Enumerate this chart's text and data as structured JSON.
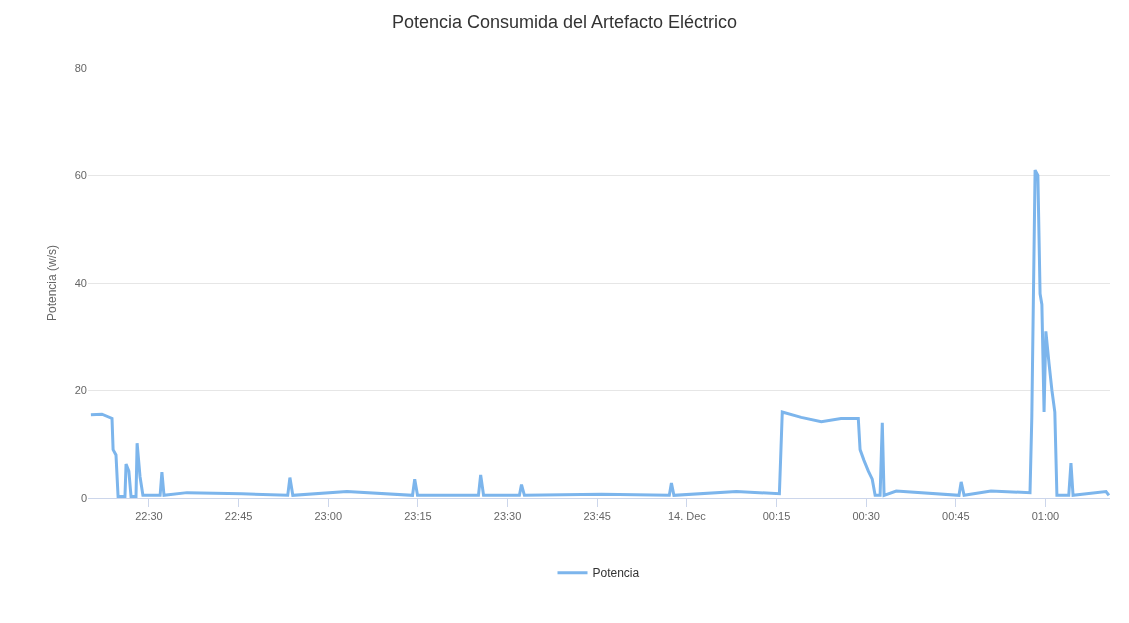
{
  "chart_data": {
    "type": "line",
    "title": "Potencia Consumida del Artefacto Eléctrico",
    "ylabel": "Potencia (w/s)",
    "x": [
      "--12-13T22:20:17",
      "--12-13T22:22:08",
      "--12-13T22:23:49",
      "--12-13T22:24:00",
      "--12-13T22:24:29",
      "--12-13T22:24:50",
      "--12-13T22:25:59",
      "--12-13T22:26:10",
      "--12-13T22:26:38",
      "--12-13T22:27:00",
      "--12-13T22:27:50",
      "--12-13T22:28:01",
      "--12-13T22:28:30",
      "--12-13T22:28:59",
      "--12-13T22:31:52",
      "--12-13T22:32:10",
      "--12-13T22:32:31",
      "--12-13T22:36:22",
      "--12-13T22:45:32",
      "--12-13T22:53:13",
      "--12-13T22:53:35",
      "--12-13T22:54:04",
      "--12-13T23:03:07",
      "--12-13T23:14:06",
      "--12-13T23:14:28",
      "--12-13T23:14:56",
      "--12-13T23:25:08",
      "--12-13T23:25:30",
      "--12-13T23:25:59",
      "--12-13T23:31:59",
      "--12-13T23:32:20",
      "--12-13T23:32:49",
      "--12-13T23:45:43",
      "--12-13T23:57:04",
      "--12-13T23:57:25",
      "--12-13T23:57:50",
      "--12-14T00:08:17",
      "--12-14T00:15:29",
      "--12-14T00:15:58",
      "--12-14T00:19:08",
      "--12-14T00:22:30",
      "--12-14T00:25:48",
      "--12-14T00:28:41",
      "--12-14T00:28:59",
      "--12-14T00:29:38",
      "--12-14T00:30:22",
      "--12-14T00:31:01",
      "--12-14T00:31:30",
      "--12-14T00:32:20",
      "--12-14T00:32:42",
      "--12-14T00:33:00",
      "--12-14T00:35:02",
      "--12-14T00:45:32",
      "--12-14T00:45:54",
      "--12-14T00:46:23",
      "--12-14T00:50:53",
      "--12-14T00:57:25",
      "--12-14T00:57:43",
      "--12-14T00:58:16",
      "--12-14T00:58:44",
      "--12-14T00:59:06",
      "--12-14T00:59:24",
      "--12-14T00:59:46",
      "--12-14T01:00:04",
      "--12-14T01:00:36",
      "--12-14T01:01:05",
      "--12-14T01:01:34",
      "--12-14T01:01:55",
      "--12-14T01:03:54",
      "--12-14T01:04:16",
      "--12-14T01:04:37",
      "--12-14T01:10:08",
      "--12-14T01:10:37"
    ],
    "series": [
      {
        "name": "Potencia",
        "color": "#7cb5ec",
        "values": [
          15.5,
          15.6,
          14.8,
          9,
          8,
          0.3,
          0.3,
          6.3,
          5,
          0.3,
          0.3,
          10.2,
          4,
          0.5,
          0.5,
          4.8,
          0.5,
          1,
          0.8,
          0.5,
          3.8,
          0.5,
          1.2,
          0.5,
          3.5,
          0.5,
          0.5,
          4.3,
          0.5,
          0.5,
          2.5,
          0.5,
          0.7,
          0.5,
          2.8,
          0.5,
          1.2,
          0.8,
          16,
          15,
          14.2,
          14.8,
          14.8,
          9,
          7,
          5,
          3.5,
          0.5,
          0.5,
          14,
          0.5,
          1.3,
          0.5,
          3,
          0.5,
          1.3,
          1,
          15,
          61,
          60,
          38,
          36,
          16,
          31,
          25,
          20,
          16,
          0.5,
          0.5,
          6.5,
          0.5,
          1.2,
          0.5
        ]
      }
    ],
    "xlim": [
      "--12-13T22:19:48",
      "--12-14T01:10:48"
    ],
    "xticks": [
      {
        "value": "--12-13T22:30",
        "label": "22:30"
      },
      {
        "value": "--12-13T22:45",
        "label": "22:45"
      },
      {
        "value": "--12-13T23:00",
        "label": "23:00"
      },
      {
        "value": "--12-13T23:15",
        "label": "23:15"
      },
      {
        "value": "--12-13T23:30",
        "label": "23:30"
      },
      {
        "value": "--12-13T23:45",
        "label": "23:45"
      },
      {
        "value": "--12-14",
        "label": "14. Dec"
      },
      {
        "value": "--12-14T00:15",
        "label": "00:15"
      },
      {
        "value": "--12-14T00:30",
        "label": "00:30"
      },
      {
        "value": "--12-14T00:45",
        "label": "00:45"
      },
      {
        "value": "--12-14T01:00",
        "label": "01:00"
      }
    ],
    "ylim": [
      0,
      80
    ],
    "yticks": [
      0,
      20,
      40,
      60,
      80
    ],
    "grid": "y",
    "legend": "bottom",
    "marker": "none",
    "line_style": "solid"
  }
}
